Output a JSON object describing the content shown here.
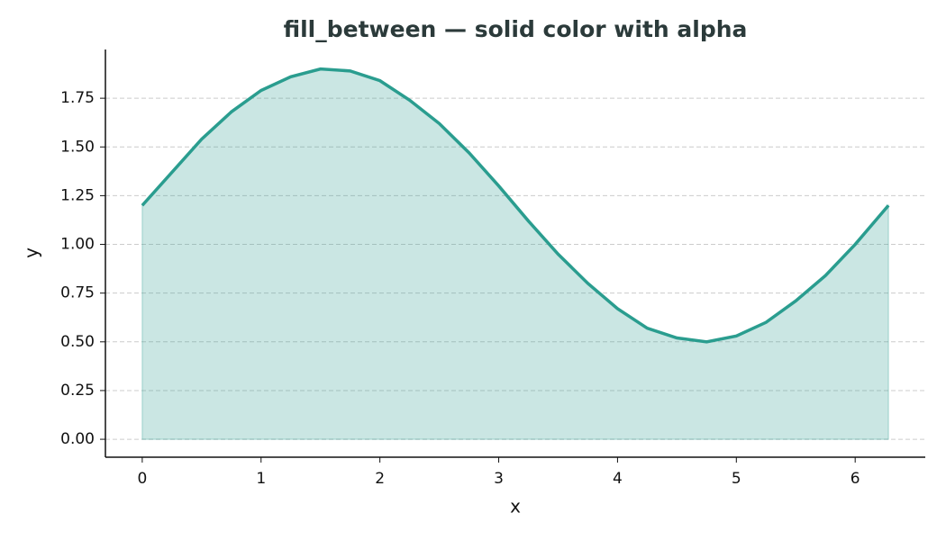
{
  "chart_data": {
    "type": "area",
    "title": "fill_between — solid color with alpha",
    "xlabel": "x",
    "ylabel": "y",
    "x": [
      0,
      0.25,
      0.5,
      0.75,
      1,
      1.25,
      1.5,
      1.75,
      2,
      2.25,
      2.5,
      2.75,
      3,
      3.25,
      3.5,
      3.75,
      4,
      4.25,
      4.5,
      4.75,
      5,
      5.25,
      5.5,
      5.75,
      6,
      6.28
    ],
    "values": [
      1.2,
      1.37,
      1.54,
      1.68,
      1.79,
      1.86,
      1.9,
      1.89,
      1.84,
      1.74,
      1.62,
      1.47,
      1.3,
      1.12,
      0.95,
      0.8,
      0.67,
      0.57,
      0.52,
      0.5,
      0.53,
      0.6,
      0.71,
      0.84,
      1.0,
      1.2
    ],
    "color": "#2a9d8f",
    "fill_alpha": 0.25,
    "xlim": [
      -0.31,
      6.59
    ],
    "ylim": [
      -0.092,
      2.0
    ],
    "xticks": [
      0,
      1,
      2,
      3,
      4,
      5,
      6
    ],
    "yticks": [
      {
        "value": 0,
        "label": "0.00"
      },
      {
        "value": 0.25,
        "label": "0.25"
      },
      {
        "value": 0.5,
        "label": "0.50"
      },
      {
        "value": 0.75,
        "label": "0.75"
      },
      {
        "value": 1,
        "label": "1.00"
      },
      {
        "value": 1.25,
        "label": "1.25"
      },
      {
        "value": 1.5,
        "label": "1.50"
      },
      {
        "value": 1.75,
        "label": "1.75"
      }
    ],
    "grid": "y"
  }
}
